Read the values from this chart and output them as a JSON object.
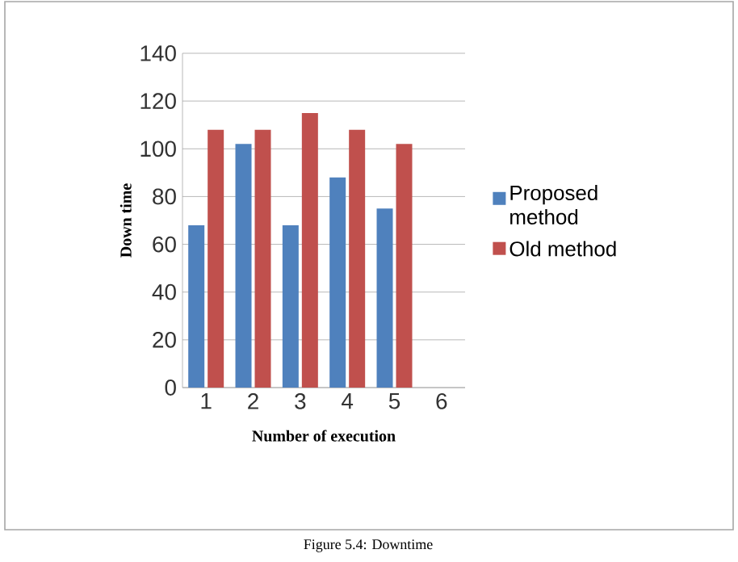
{
  "chart_data": {
    "type": "bar",
    "xlabel": "Number of execution",
    "ylabel": "Down time",
    "categories": [
      "1",
      "2",
      "3",
      "4",
      "5",
      "6"
    ],
    "series": [
      {
        "name": "Proposed method",
        "color": "#4f81bd",
        "values": [
          68,
          102,
          68,
          88,
          75,
          null
        ]
      },
      {
        "name": "Old method",
        "color": "#c0504d",
        "values": [
          108,
          108,
          115,
          108,
          102,
          null
        ]
      }
    ],
    "ylim": [
      0,
      140
    ],
    "yticks": [
      0,
      20,
      40,
      60,
      80,
      100,
      120,
      140
    ],
    "grid": "y",
    "legend": "right",
    "annotations": [
      "Figure 5.4: Downtime"
    ]
  }
}
